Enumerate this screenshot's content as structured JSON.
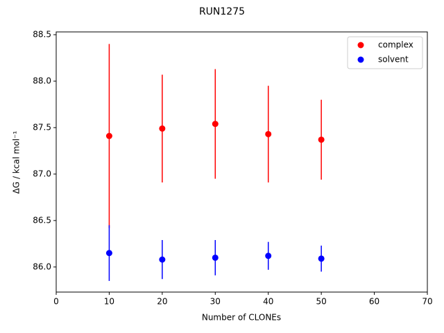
{
  "chart_data": {
    "type": "scatter",
    "title": "RUN1275",
    "xlabel": "Number of CLONEs",
    "ylabel": "ΔG / kcal mol⁻¹",
    "xlim": [
      0,
      70
    ],
    "xticks": [
      0,
      10,
      20,
      30,
      40,
      50,
      60,
      70
    ],
    "ylim": [
      85.73,
      88.53
    ],
    "yticks": [
      {
        "value": 86,
        "label": "86.0"
      },
      86.5,
      {
        "value": 87,
        "label": "87.0"
      },
      87.5,
      {
        "value": 88,
        "label": "88.0"
      },
      88.5
    ],
    "legend": "upper right",
    "series": [
      {
        "name": "complex",
        "color": "#ff0000",
        "x": [
          10,
          20,
          30,
          40,
          50
        ],
        "values": [
          87.41,
          87.49,
          87.54,
          87.43,
          87.37
        ],
        "errors": [
          0.99,
          0.58,
          0.59,
          0.52,
          0.43
        ]
      },
      {
        "name": "solvent",
        "color": "#0000ff",
        "x": [
          10,
          20,
          30,
          40,
          50
        ],
        "values": [
          86.15,
          86.08,
          86.1,
          86.12,
          86.09
        ],
        "errors": [
          0.3,
          0.21,
          0.19,
          0.15,
          0.14
        ]
      }
    ]
  }
}
